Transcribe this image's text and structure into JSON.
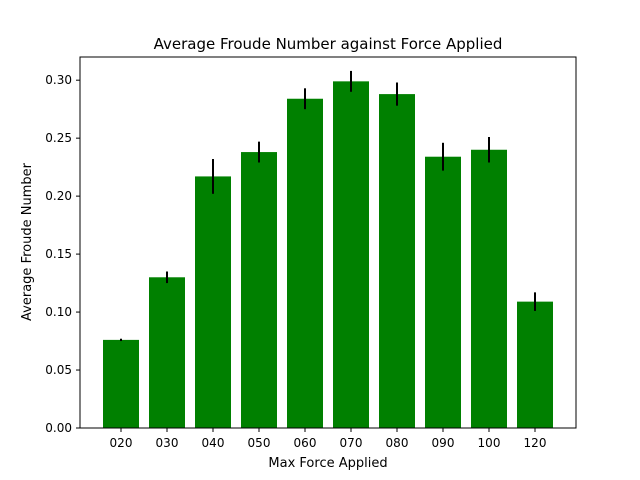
{
  "chart_data": {
    "type": "bar",
    "title": "Average Froude Number against Force Applied",
    "xlabel": "Max Force Applied",
    "ylabel": "Average Froude Number",
    "categories": [
      "020",
      "030",
      "040",
      "050",
      "060",
      "070",
      "080",
      "090",
      "100",
      "120"
    ],
    "values": [
      0.076,
      0.13,
      0.217,
      0.238,
      0.284,
      0.299,
      0.288,
      0.234,
      0.24,
      0.109
    ],
    "errors": [
      0.001,
      0.005,
      0.015,
      0.009,
      0.009,
      0.009,
      0.01,
      0.012,
      0.011,
      0.008
    ],
    "ylim": [
      0,
      0.32
    ],
    "yticks": [
      0.0,
      0.05,
      0.1,
      0.15,
      0.2,
      0.25,
      0.3
    ],
    "ytick_labels": [
      "0.00",
      "0.05",
      "0.10",
      "0.15",
      "0.20",
      "0.25",
      "0.30"
    ],
    "grid": false,
    "bar_color": "#008000",
    "error_color": "#000000"
  }
}
